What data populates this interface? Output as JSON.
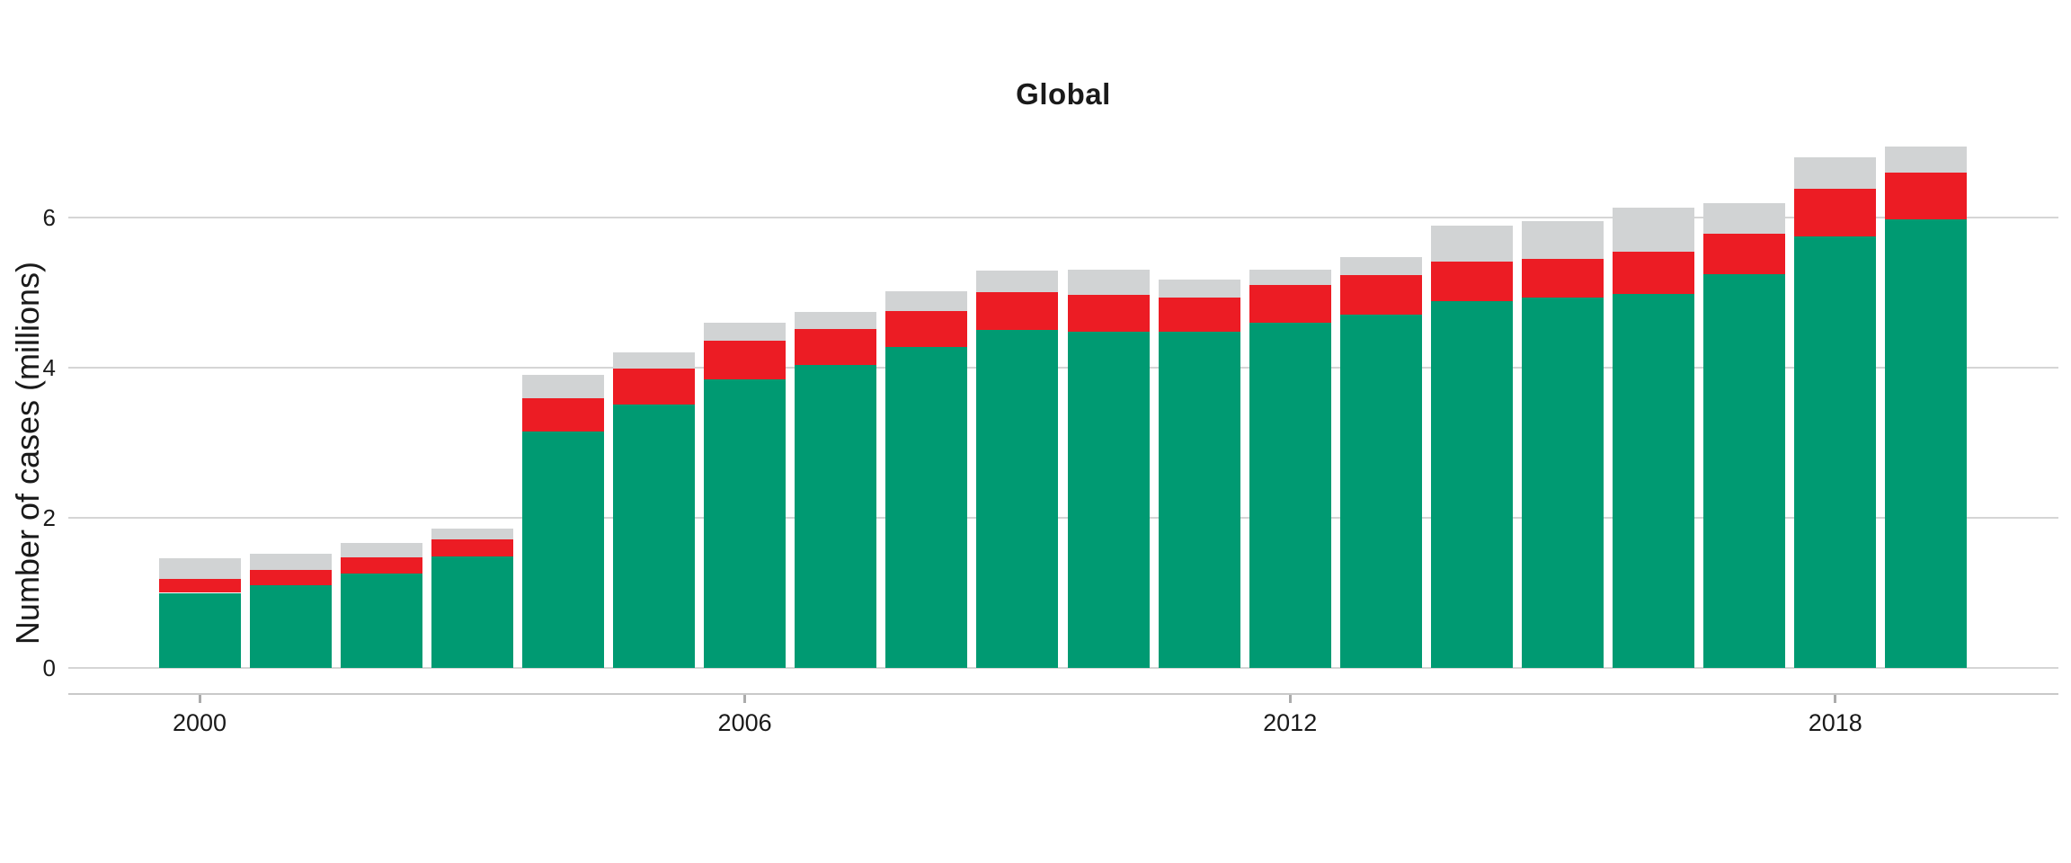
{
  "title": "Global",
  "y_axis": {
    "label": "Number of cases (millions)",
    "tick_labels": [
      "0",
      "2",
      "4",
      "6"
    ],
    "tick_values": [
      0,
      2,
      4,
      6
    ]
  },
  "x_axis": {
    "tick_labels": [
      "2000",
      "2006",
      "2012",
      "2018"
    ],
    "tick_values": [
      2000,
      2006,
      2012,
      2018
    ]
  },
  "colors": {
    "green": "#009A72",
    "red": "#EC1C24",
    "gray": "#D1D3D4",
    "gridline": "#D5D5D5",
    "axis_line": "#C9C9C9",
    "tick_mark": "#ABABAB",
    "text": "#1A1A1A"
  },
  "chart_data": {
    "type": "bar",
    "stacked": true,
    "title": "Global",
    "xlabel": "",
    "ylabel": "Number of cases (millions)",
    "ylim": [
      0,
      7.2
    ],
    "grid": "horizontal",
    "legend": "none",
    "categories": [
      2000,
      2001,
      2002,
      2003,
      2004,
      2005,
      2006,
      2007,
      2008,
      2009,
      2010,
      2011,
      2012,
      2013,
      2014,
      2015,
      2016,
      2017,
      2018,
      2019
    ],
    "series": [
      {
        "name": "green-bottom-segment",
        "color_key": "green",
        "values": [
          1.0,
          1.1,
          1.26,
          1.48,
          3.15,
          3.51,
          3.84,
          4.04,
          4.27,
          4.5,
          4.48,
          4.48,
          4.6,
          4.71,
          4.89,
          4.93,
          4.98,
          5.24,
          5.75,
          5.98
        ]
      },
      {
        "name": "red-middle-segment",
        "color_key": "red",
        "values": [
          0.18,
          0.2,
          0.21,
          0.23,
          0.44,
          0.48,
          0.52,
          0.48,
          0.49,
          0.51,
          0.49,
          0.46,
          0.5,
          0.52,
          0.52,
          0.52,
          0.56,
          0.54,
          0.63,
          0.62
        ]
      },
      {
        "name": "gray-top-segment",
        "color_key": "gray",
        "values": [
          0.28,
          0.22,
          0.19,
          0.15,
          0.31,
          0.21,
          0.24,
          0.22,
          0.26,
          0.28,
          0.33,
          0.23,
          0.21,
          0.24,
          0.48,
          0.5,
          0.59,
          0.41,
          0.42,
          0.35
        ]
      }
    ],
    "cumulative_totals": [
      1.46,
      1.52,
      1.66,
      1.86,
      3.9,
      4.2,
      4.6,
      4.74,
      5.02,
      5.29,
      5.3,
      5.17,
      5.31,
      5.47,
      5.89,
      5.95,
      6.13,
      6.19,
      6.8,
      6.95
    ]
  }
}
